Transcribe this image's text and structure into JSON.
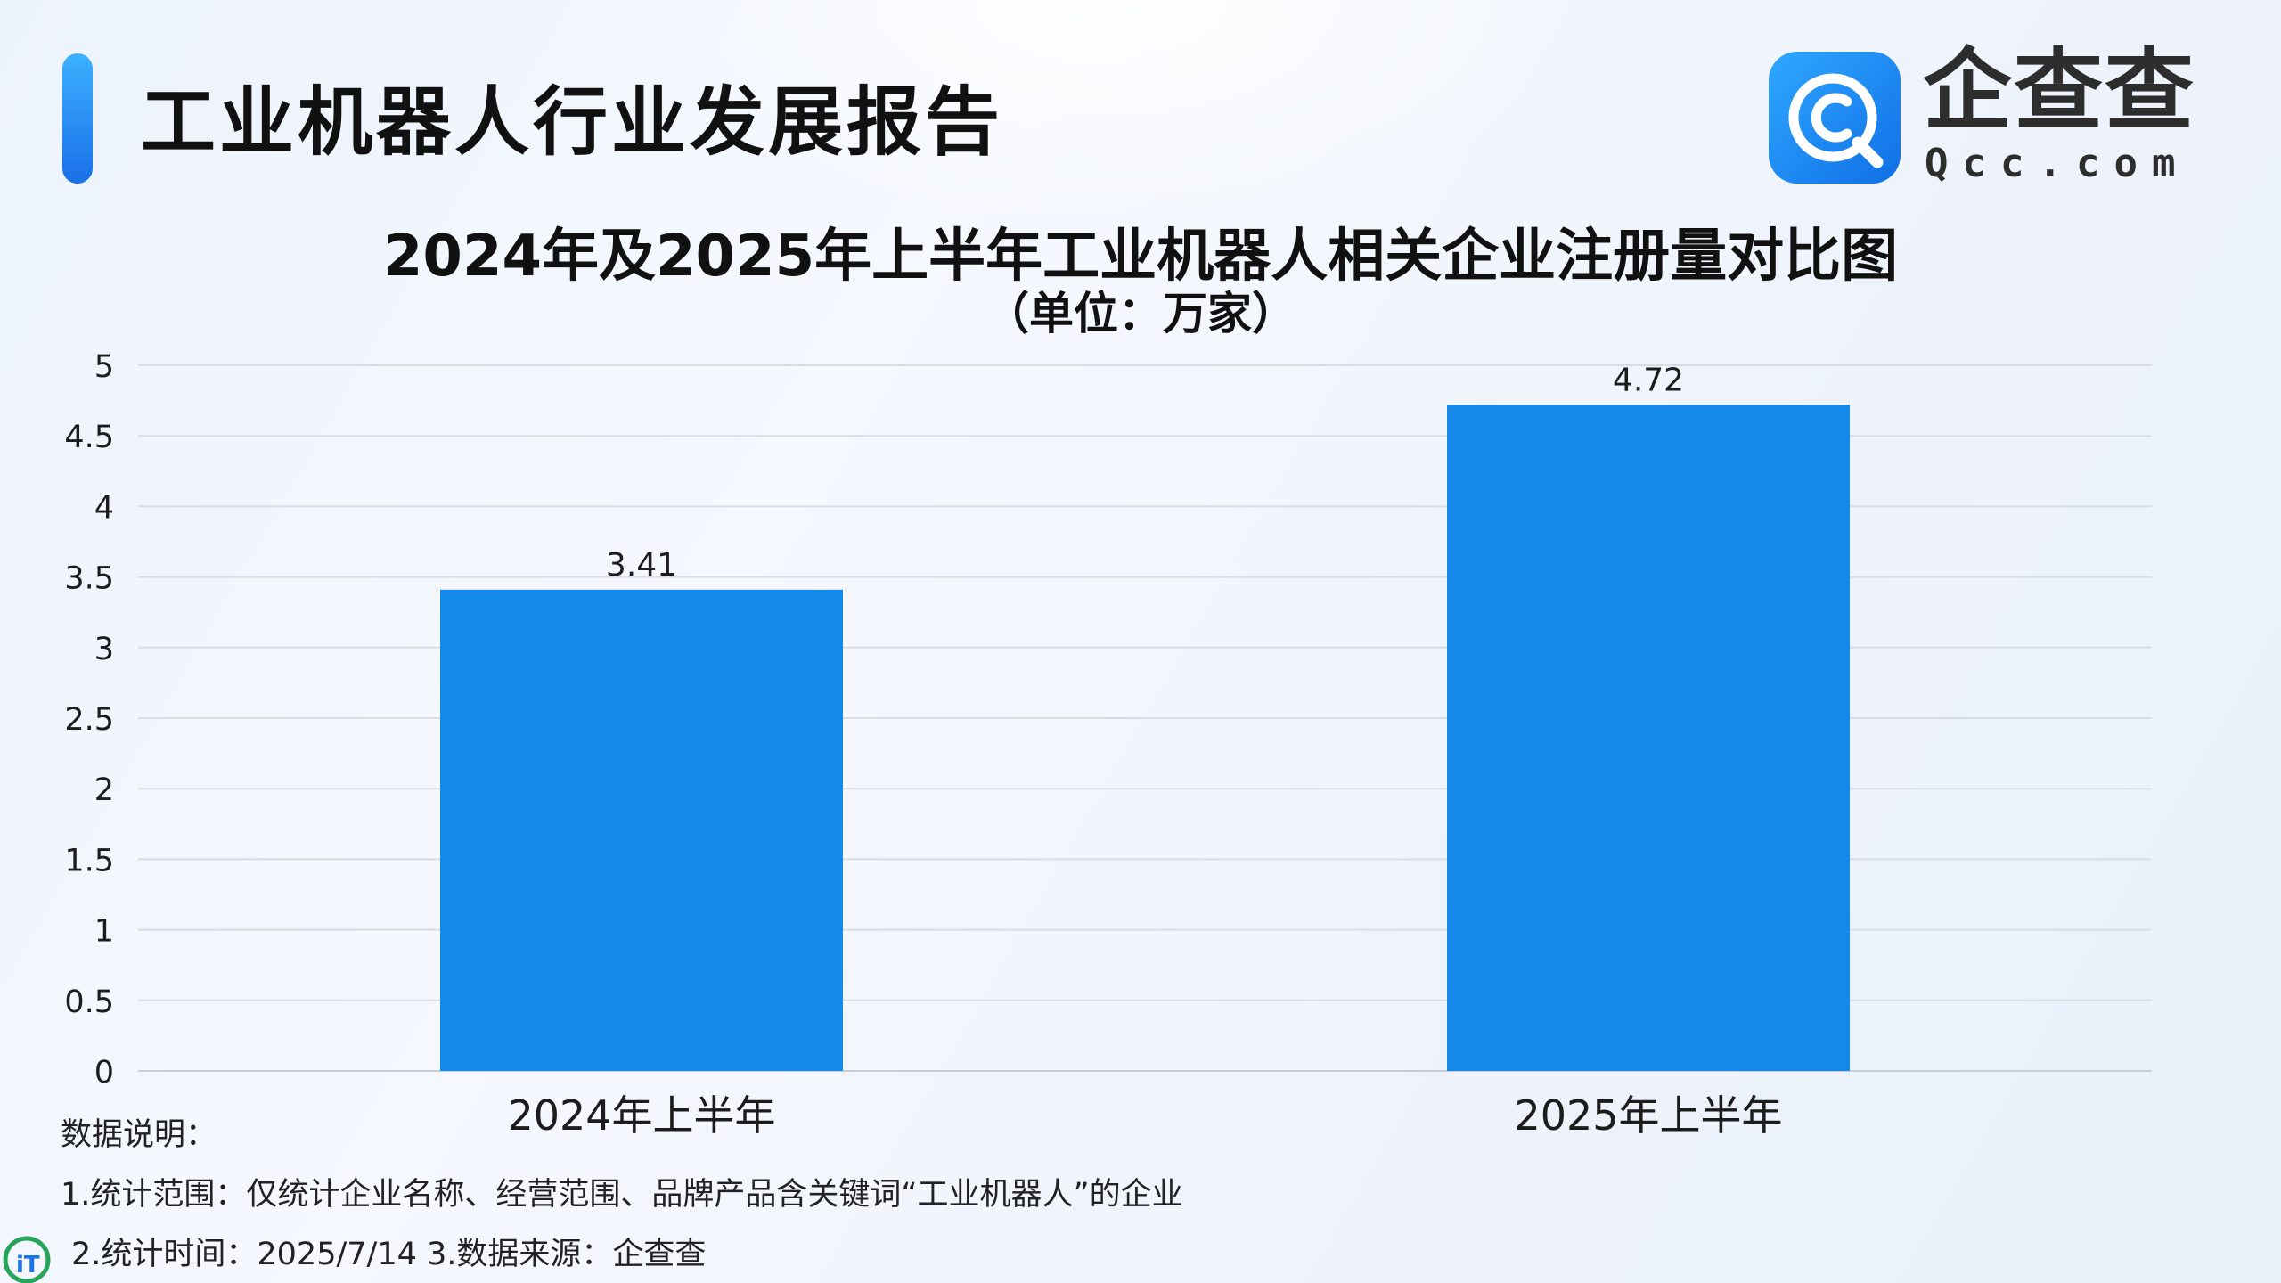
{
  "header": {
    "report_title": "工业机器人行业发展报告",
    "brand_name": "企查查",
    "brand_domain": "Qcc.com"
  },
  "colors": {
    "bar": "#1589e9",
    "accent": "#1a73e8",
    "grid": "#d9dde3",
    "text": "#1c1c1c"
  },
  "chart_data": {
    "type": "bar",
    "title": "2024年及2025年上半年工业机器人相关企业注册量对比图",
    "subtitle": "（单位：万家）",
    "categories": [
      "2024年上半年",
      "2025年上半年"
    ],
    "values": [
      3.41,
      4.72
    ],
    "data_labels": [
      "3.41",
      "4.72"
    ],
    "ylim": [
      0,
      5
    ],
    "yticks": [
      "0",
      "0.5",
      "1",
      "1.5",
      "2",
      "2.5",
      "3",
      "3.5",
      "4",
      "4.5",
      "5"
    ],
    "grid": true,
    "legend": "none"
  },
  "notes": {
    "label": "数据说明：",
    "line1": "1.统计范围：仅统计企业名称、经营范围、品牌产品含关键词“工业机器人”的企业",
    "line2": "2.统计时间：2025/7/14 3.数据来源：企查查"
  },
  "icons": {
    "logo": "qcc-logo-icon",
    "watermark": "it-home-watermark-icon"
  }
}
